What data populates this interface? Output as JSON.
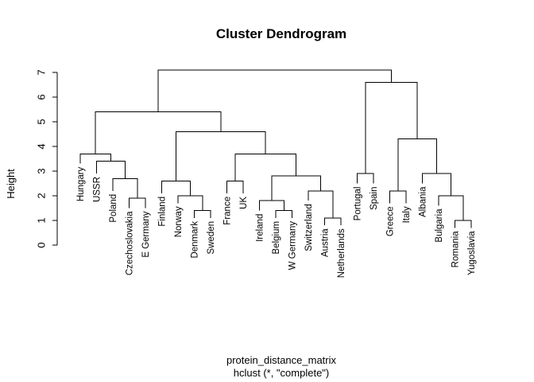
{
  "chart_data": {
    "type": "dendrogram",
    "title": "Cluster Dendrogram",
    "ylabel": "Height",
    "xlabel": "protein_distance_matrix",
    "sublabel": "hclust (*, \"complete\")",
    "ylim": [
      0,
      7
    ],
    "yticks": [
      0,
      1,
      2,
      3,
      4,
      5,
      6,
      7
    ],
    "yticklabels": [
      "0",
      "1",
      "2",
      "3",
      "4",
      "5",
      "6",
      "7"
    ],
    "leaves": [
      {
        "label": "Hungary",
        "height": 3.3
      },
      {
        "label": "USSR",
        "height": 2.9
      },
      {
        "label": "Poland",
        "height": 2.2
      },
      {
        "label": "Czechoslovakia",
        "height": 1.5
      },
      {
        "label": "E Germany",
        "height": 1.5
      },
      {
        "label": "Finland",
        "height": 2.1
      },
      {
        "label": "Norway",
        "height": 1.7
      },
      {
        "label": "Denmark",
        "height": 1.1
      },
      {
        "label": "Sweden",
        "height": 1.1
      },
      {
        "label": "France",
        "height": 2.1
      },
      {
        "label": "UK",
        "height": 2.1
      },
      {
        "label": "Ireland",
        "height": 1.4
      },
      {
        "label": "Belgium",
        "height": 1.1
      },
      {
        "label": "W Germany",
        "height": 1.1
      },
      {
        "label": "Switzerland",
        "height": 1.8
      },
      {
        "label": "Austria",
        "height": 0.8
      },
      {
        "label": "Netherlands",
        "height": 0.8
      },
      {
        "label": "Portugal",
        "height": 2.5
      },
      {
        "label": "Spain",
        "height": 2.5
      },
      {
        "label": "Greece",
        "height": 1.7
      },
      {
        "label": "Italy",
        "height": 1.7
      },
      {
        "label": "Albania",
        "height": 2.5
      },
      {
        "label": "Bulgaria",
        "height": 1.6
      },
      {
        "label": "Romania",
        "height": 0.7
      },
      {
        "label": "Yugoslavia",
        "height": 0.7
      }
    ],
    "merges": [
      {
        "left": "Czechoslovakia",
        "right": "E Germany",
        "height": 1.9
      },
      {
        "left": "Poland",
        "right": "merge:0",
        "height": 2.7
      },
      {
        "left": "USSR",
        "right": "merge:1",
        "height": 3.4
      },
      {
        "left": "Hungary",
        "right": "merge:2",
        "height": 3.7
      },
      {
        "left": "Denmark",
        "right": "Sweden",
        "height": 1.4
      },
      {
        "left": "Norway",
        "right": "merge:4",
        "height": 2.0
      },
      {
        "left": "Finland",
        "right": "merge:5",
        "height": 2.6
      },
      {
        "left": "France",
        "right": "UK",
        "height": 2.6
      },
      {
        "left": "Belgium",
        "right": "W Germany",
        "height": 1.4
      },
      {
        "left": "Ireland",
        "right": "merge:8",
        "height": 1.8
      },
      {
        "left": "Austria",
        "right": "Netherlands",
        "height": 1.1
      },
      {
        "left": "Switzerland",
        "right": "merge:10",
        "height": 2.2
      },
      {
        "left": "merge:9",
        "right": "merge:11",
        "height": 2.8
      },
      {
        "left": "merge:7",
        "right": "merge:12",
        "height": 3.7
      },
      {
        "left": "merge:6",
        "right": "merge:13",
        "height": 4.6
      },
      {
        "left": "merge:3",
        "right": "merge:14",
        "height": 5.4
      },
      {
        "left": "Portugal",
        "right": "Spain",
        "height": 2.9
      },
      {
        "left": "Greece",
        "right": "Italy",
        "height": 2.2
      },
      {
        "left": "Romania",
        "right": "Yugoslavia",
        "height": 1.0
      },
      {
        "left": "Bulgaria",
        "right": "merge:18",
        "height": 2.0
      },
      {
        "left": "Albania",
        "right": "merge:19",
        "height": 2.9
      },
      {
        "left": "merge:17",
        "right": "merge:20",
        "height": 4.3
      },
      {
        "left": "merge:16",
        "right": "merge:21",
        "height": 6.6
      },
      {
        "left": "merge:15",
        "right": "merge:22",
        "height": 7.1
      }
    ]
  }
}
